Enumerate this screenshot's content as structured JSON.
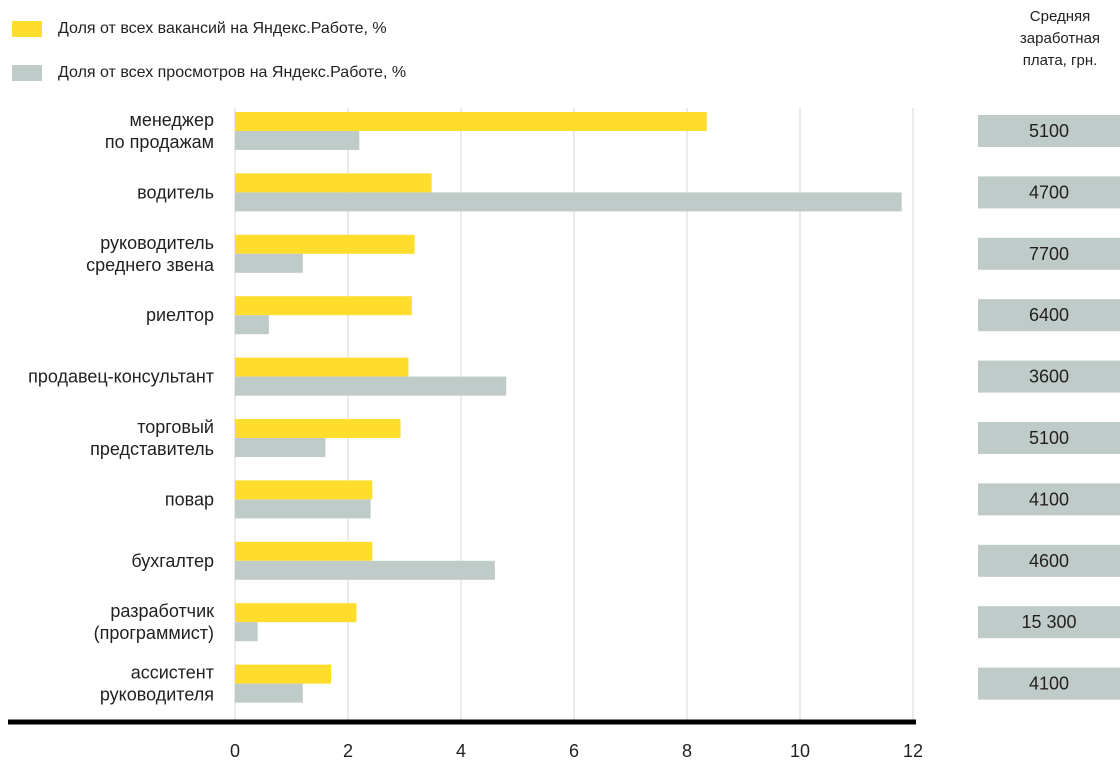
{
  "chart_data": {
    "type": "bar",
    "orientation": "horizontal",
    "categories": [
      [
        "менеджер",
        "по продажам"
      ],
      [
        "водитель"
      ],
      [
        "руководитель",
        "среднего звена"
      ],
      [
        "риелтор"
      ],
      [
        "продавец-консультант"
      ],
      [
        "торговый",
        "представитель"
      ],
      [
        "повар"
      ],
      [
        "бухгалтер"
      ],
      [
        "разработчик",
        "(программист)"
      ],
      [
        "ассистент",
        "руководителя"
      ]
    ],
    "series": [
      {
        "name": "Доля от всех вакансий на Яндекс.Работе, %",
        "color": "#ffdd2d",
        "values": [
          8.35,
          3.48,
          3.18,
          3.13,
          3.07,
          2.93,
          2.43,
          2.43,
          2.15,
          1.7
        ]
      },
      {
        "name": "Доля от всех просмотров на Яндекс.Работе, %",
        "color": "#bfcbc9",
        "values": [
          2.2,
          11.8,
          1.2,
          0.6,
          4.8,
          1.6,
          2.4,
          4.6,
          0.4,
          1.2
        ]
      }
    ],
    "xlim": [
      0,
      12
    ],
    "xticks": [
      0,
      2,
      4,
      6,
      8,
      10,
      12
    ],
    "grid": true,
    "legend_position": "top-left",
    "salary": {
      "title_lines": [
        "Средняя",
        "заработная",
        "плата, грн."
      ],
      "values": [
        "5100",
        "4700",
        "7700",
        "6400",
        "3600",
        "5100",
        "4100",
        "4600",
        "15 300",
        "4100"
      ]
    }
  }
}
